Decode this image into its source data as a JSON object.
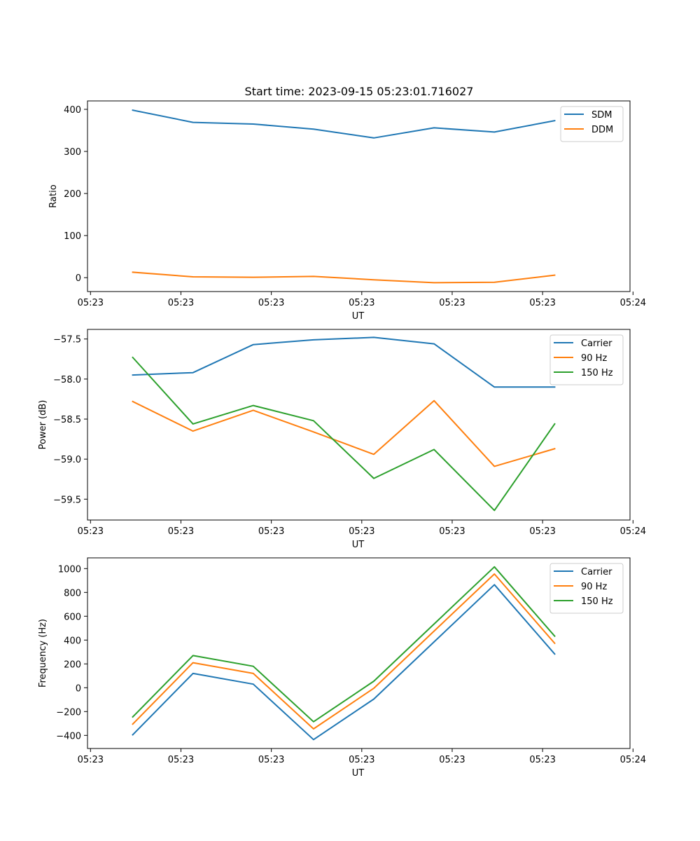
{
  "title": "Start time: 2023-09-15 05:23:01.716027",
  "x_tick_labels": [
    "05:23",
    "05:23",
    "05:23",
    "05:23",
    "05:23",
    "05:23",
    "05:24"
  ],
  "chart_data": [
    {
      "type": "line",
      "xlabel": "UT",
      "ylabel": "Ratio",
      "xlim": [
        -0.25,
        8.75
      ],
      "ylim": [
        -33,
        420
      ],
      "yticks": [
        0,
        100,
        200,
        300,
        400
      ],
      "ytick_labels": [
        "0",
        "100",
        "200",
        "300",
        "400"
      ],
      "xticks": [
        -0.2,
        1.3,
        2.8,
        4.3,
        5.8,
        7.3,
        8.8
      ],
      "legend_position": "upper right",
      "x": [
        0.5,
        1.5,
        2.5,
        3.5,
        4.5,
        5.5,
        6.5,
        7.5
      ],
      "series": [
        {
          "name": "SDM",
          "color": "#1f77b4",
          "values": [
            398,
            369,
            365,
            353,
            332,
            356,
            346,
            373
          ]
        },
        {
          "name": "DDM",
          "color": "#ff7f0e",
          "values": [
            13,
            2,
            1,
            3,
            -5,
            -12,
            -11,
            6
          ]
        }
      ]
    },
    {
      "type": "line",
      "xlabel": "UT",
      "ylabel": "Power (dB)",
      "xlim": [
        -0.25,
        8.75
      ],
      "ylim": [
        -59.76,
        -57.38
      ],
      "yticks": [
        -59.5,
        -59.0,
        -58.5,
        -58.0,
        -57.5
      ],
      "ytick_labels": [
        "−59.5",
        "−59.0",
        "−58.5",
        "−58.0",
        "−57.5"
      ],
      "xticks": [
        -0.2,
        1.3,
        2.8,
        4.3,
        5.8,
        7.3,
        8.8
      ],
      "legend_position": "upper right",
      "x": [
        0.5,
        1.5,
        2.5,
        3.5,
        4.5,
        5.5,
        6.5,
        7.5
      ],
      "series": [
        {
          "name": "Carrier",
          "color": "#1f77b4",
          "values": [
            -57.95,
            -57.92,
            -57.57,
            -57.51,
            -57.48,
            -57.56,
            -58.1,
            -58.1
          ]
        },
        {
          "name": "90 Hz",
          "color": "#ff7f0e",
          "values": [
            -58.28,
            -58.65,
            -58.39,
            -58.66,
            -58.94,
            -58.27,
            -59.09,
            -58.87
          ]
        },
        {
          "name": "150 Hz",
          "color": "#2ca02c",
          "values": [
            -57.73,
            -58.56,
            -58.33,
            -58.52,
            -59.24,
            -58.88,
            -59.64,
            -58.56
          ]
        }
      ]
    },
    {
      "type": "line",
      "xlabel": "UT",
      "ylabel": "Frequency (Hz)",
      "xlim": [
        -0.25,
        8.75
      ],
      "ylim": [
        -510,
        1090
      ],
      "yticks": [
        -400,
        -200,
        0,
        200,
        400,
        600,
        800,
        1000
      ],
      "ytick_labels": [
        "−400",
        "−200",
        "0",
        "200",
        "400",
        "600",
        "800",
        "1000"
      ],
      "xticks": [
        -0.2,
        1.3,
        2.8,
        4.3,
        5.8,
        7.3,
        8.8
      ],
      "legend_position": "upper right",
      "x": [
        0.5,
        1.5,
        2.5,
        3.5,
        4.5,
        5.5,
        6.5,
        7.5
      ],
      "series": [
        {
          "name": "Carrier",
          "color": "#1f77b4",
          "values": [
            -395,
            120,
            30,
            -435,
            -95,
            385,
            865,
            283
          ]
        },
        {
          "name": "90 Hz",
          "color": "#ff7f0e",
          "values": [
            -305,
            210,
            120,
            -345,
            -5,
            475,
            955,
            373
          ]
        },
        {
          "name": "150 Hz",
          "color": "#2ca02c",
          "values": [
            -245,
            270,
            180,
            -285,
            55,
            535,
            1015,
            433
          ]
        }
      ]
    }
  ]
}
